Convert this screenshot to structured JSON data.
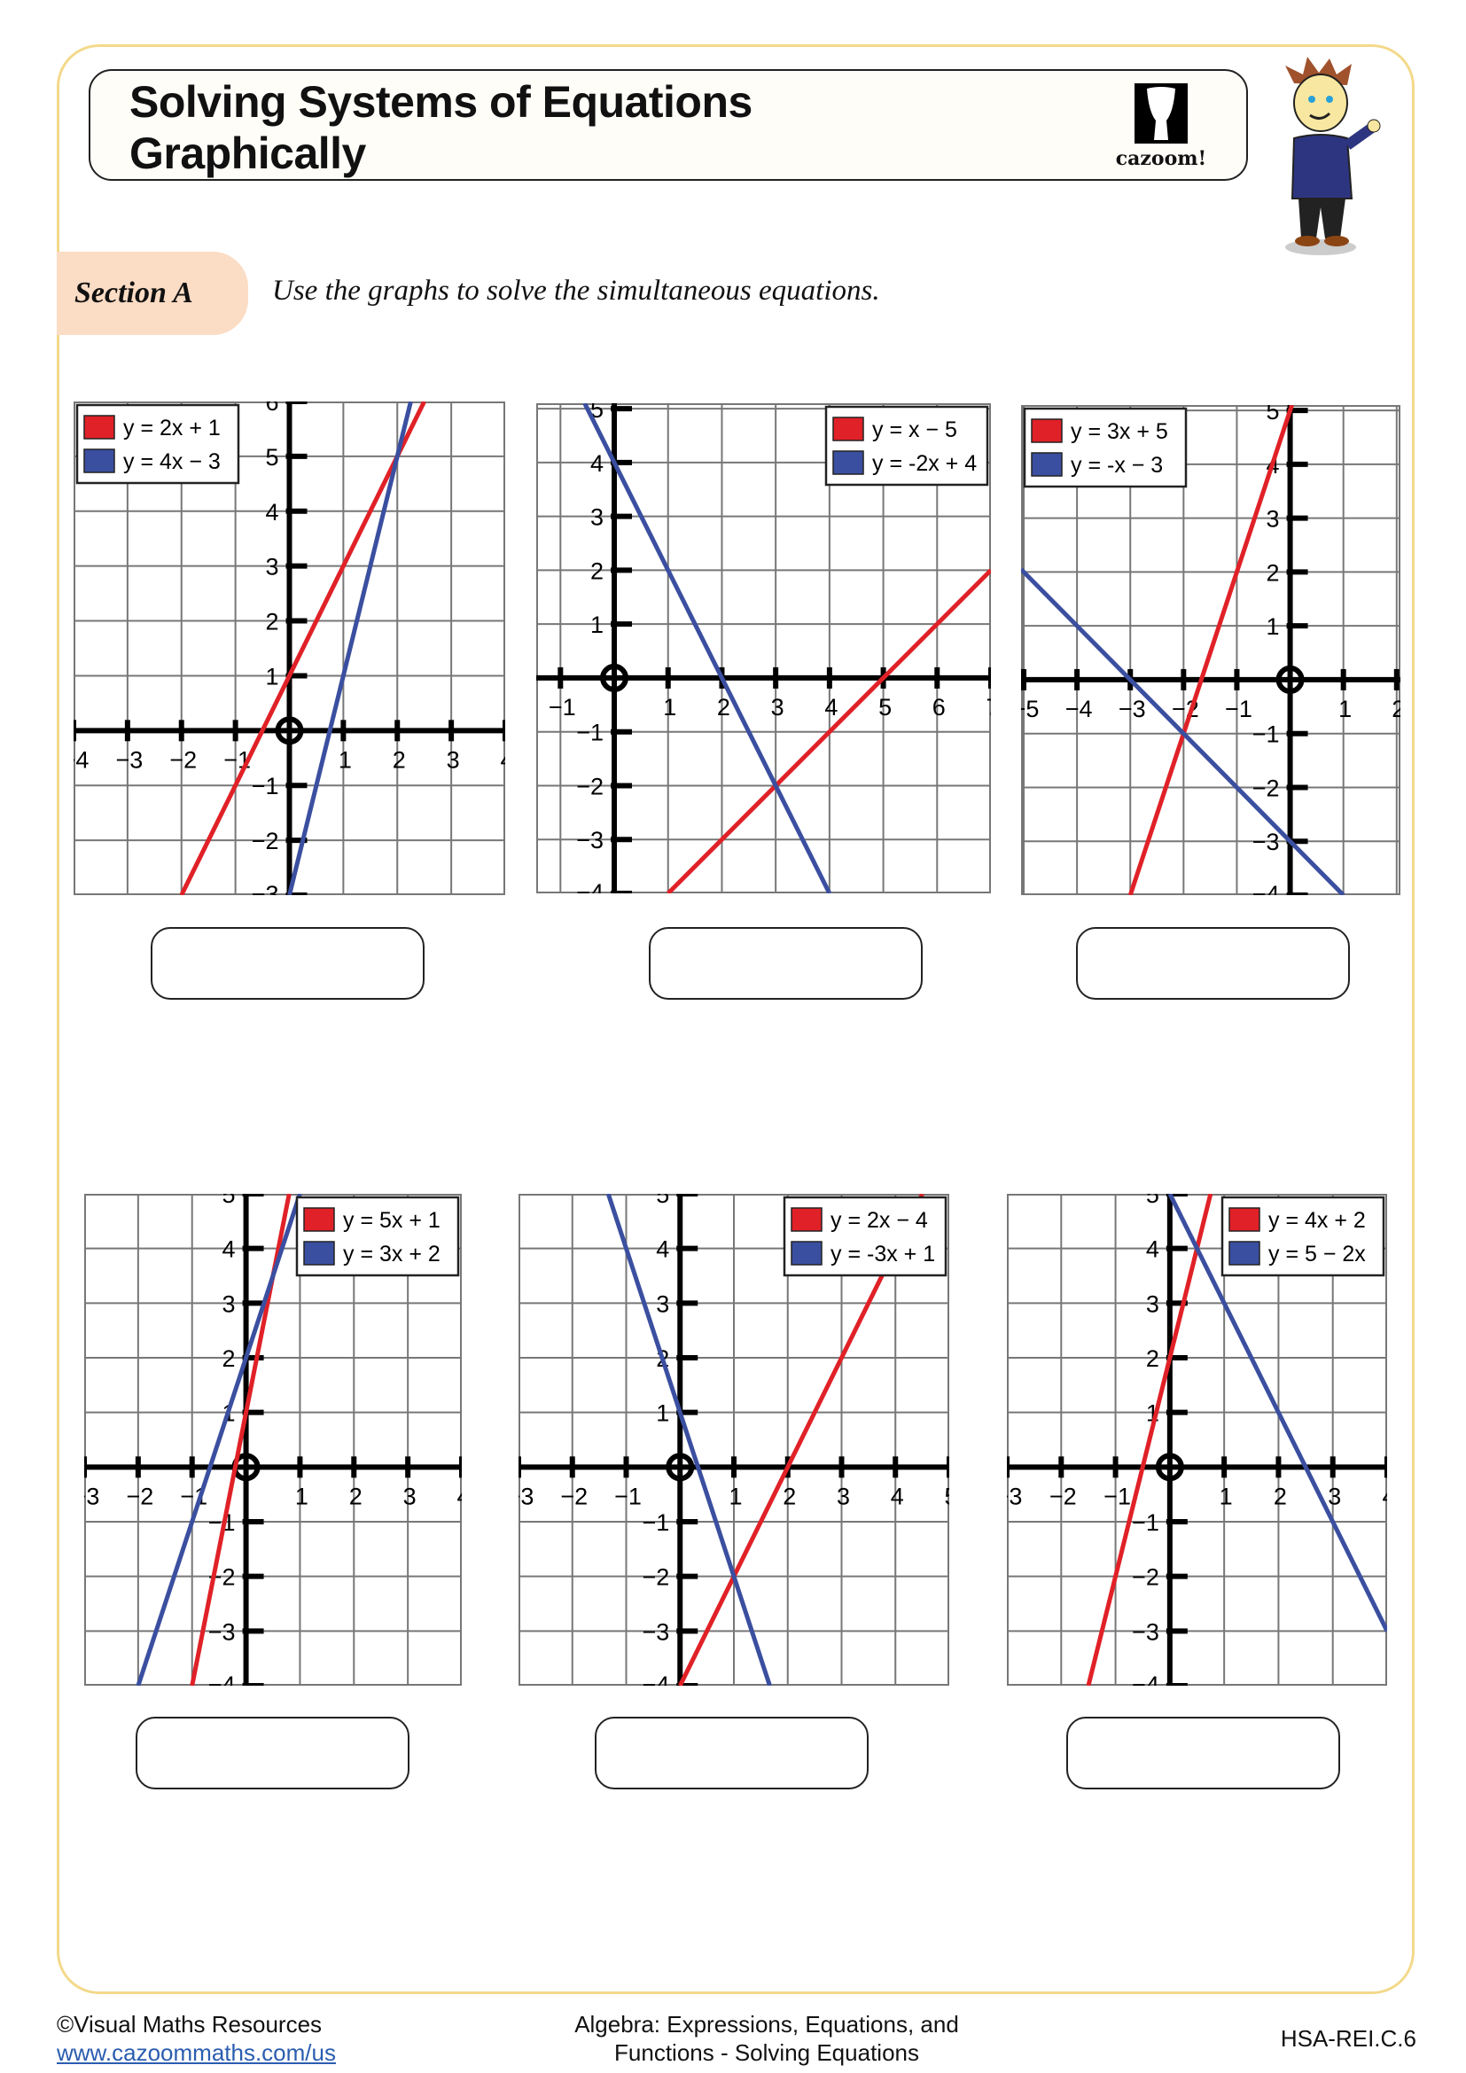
{
  "header": {
    "title_line1": "Solving Systems of Equations",
    "title_line2": "Graphically",
    "logo_text": "cazoom!"
  },
  "section": {
    "label": "Section A",
    "instruction": "Use the graphs to solve the simultaneous equations."
  },
  "colors": {
    "red_line": "#e02127",
    "blue_line": "#3b4fa0",
    "frame": "#f3d98a",
    "section_fill": "#fbdcc4",
    "grid": "#777777"
  },
  "chart_data": [
    {
      "type": "line",
      "xlim": [
        -4,
        4
      ],
      "ylim": [
        -3,
        6
      ],
      "grid": true,
      "legend_position": "top-left",
      "series": [
        {
          "name": "y = 2x + 1",
          "slope": 2,
          "intercept": 1,
          "color": "red"
        },
        {
          "name": "y = 4x − 3",
          "slope": 4,
          "intercept": -3,
          "color": "blue"
        }
      ]
    },
    {
      "type": "line",
      "xlim": [
        -1.45,
        7
      ],
      "ylim": [
        -4,
        5.1
      ],
      "grid": true,
      "legend_position": "top-right",
      "series": [
        {
          "name": "y = x − 5",
          "slope": 1,
          "intercept": -5,
          "color": "red"
        },
        {
          "name": "y = -2x + 4",
          "slope": -2,
          "intercept": 4,
          "color": "blue"
        }
      ]
    },
    {
      "type": "line",
      "xlim": [
        -5.05,
        2.07
      ],
      "ylim": [
        -4,
        5.1
      ],
      "grid": true,
      "legend_position": "top-left",
      "series": [
        {
          "name": "y = 3x + 5",
          "slope": 3,
          "intercept": 5,
          "color": "red"
        },
        {
          "name": "y = -x − 3",
          "slope": -1,
          "intercept": -3,
          "color": "blue"
        }
      ]
    },
    {
      "type": "line",
      "xlim": [
        -3,
        4
      ],
      "ylim": [
        -4,
        5
      ],
      "grid": true,
      "legend_position": "top-right",
      "series": [
        {
          "name": "y = 5x + 1",
          "slope": 5,
          "intercept": 1,
          "color": "red"
        },
        {
          "name": "y = 3x + 2",
          "slope": 3,
          "intercept": 2,
          "color": "blue"
        }
      ]
    },
    {
      "type": "line",
      "xlim": [
        -3,
        5
      ],
      "ylim": [
        -4,
        5
      ],
      "grid": true,
      "legend_position": "top-right",
      "series": [
        {
          "name": "y = 2x − 4",
          "slope": 2,
          "intercept": -4,
          "color": "red"
        },
        {
          "name": "y = -3x + 1",
          "slope": -3,
          "intercept": 1,
          "color": "blue"
        }
      ]
    },
    {
      "type": "line",
      "xlim": [
        -3,
        4
      ],
      "ylim": [
        -4,
        5
      ],
      "grid": true,
      "legend_position": "top-right",
      "series": [
        {
          "name": "y = 4x + 2",
          "slope": 4,
          "intercept": 2,
          "color": "red"
        },
        {
          "name": "y = 5 − 2x",
          "slope": -2,
          "intercept": 5,
          "color": "blue"
        }
      ]
    }
  ],
  "footer": {
    "copyright": "©Visual Maths Resources",
    "link": "www.cazoommaths.com/us",
    "topic_line1": "Algebra: Expressions, Equations, and",
    "topic_line2": "Functions - Solving Equations",
    "standard": "HSA-REI.C.6"
  }
}
